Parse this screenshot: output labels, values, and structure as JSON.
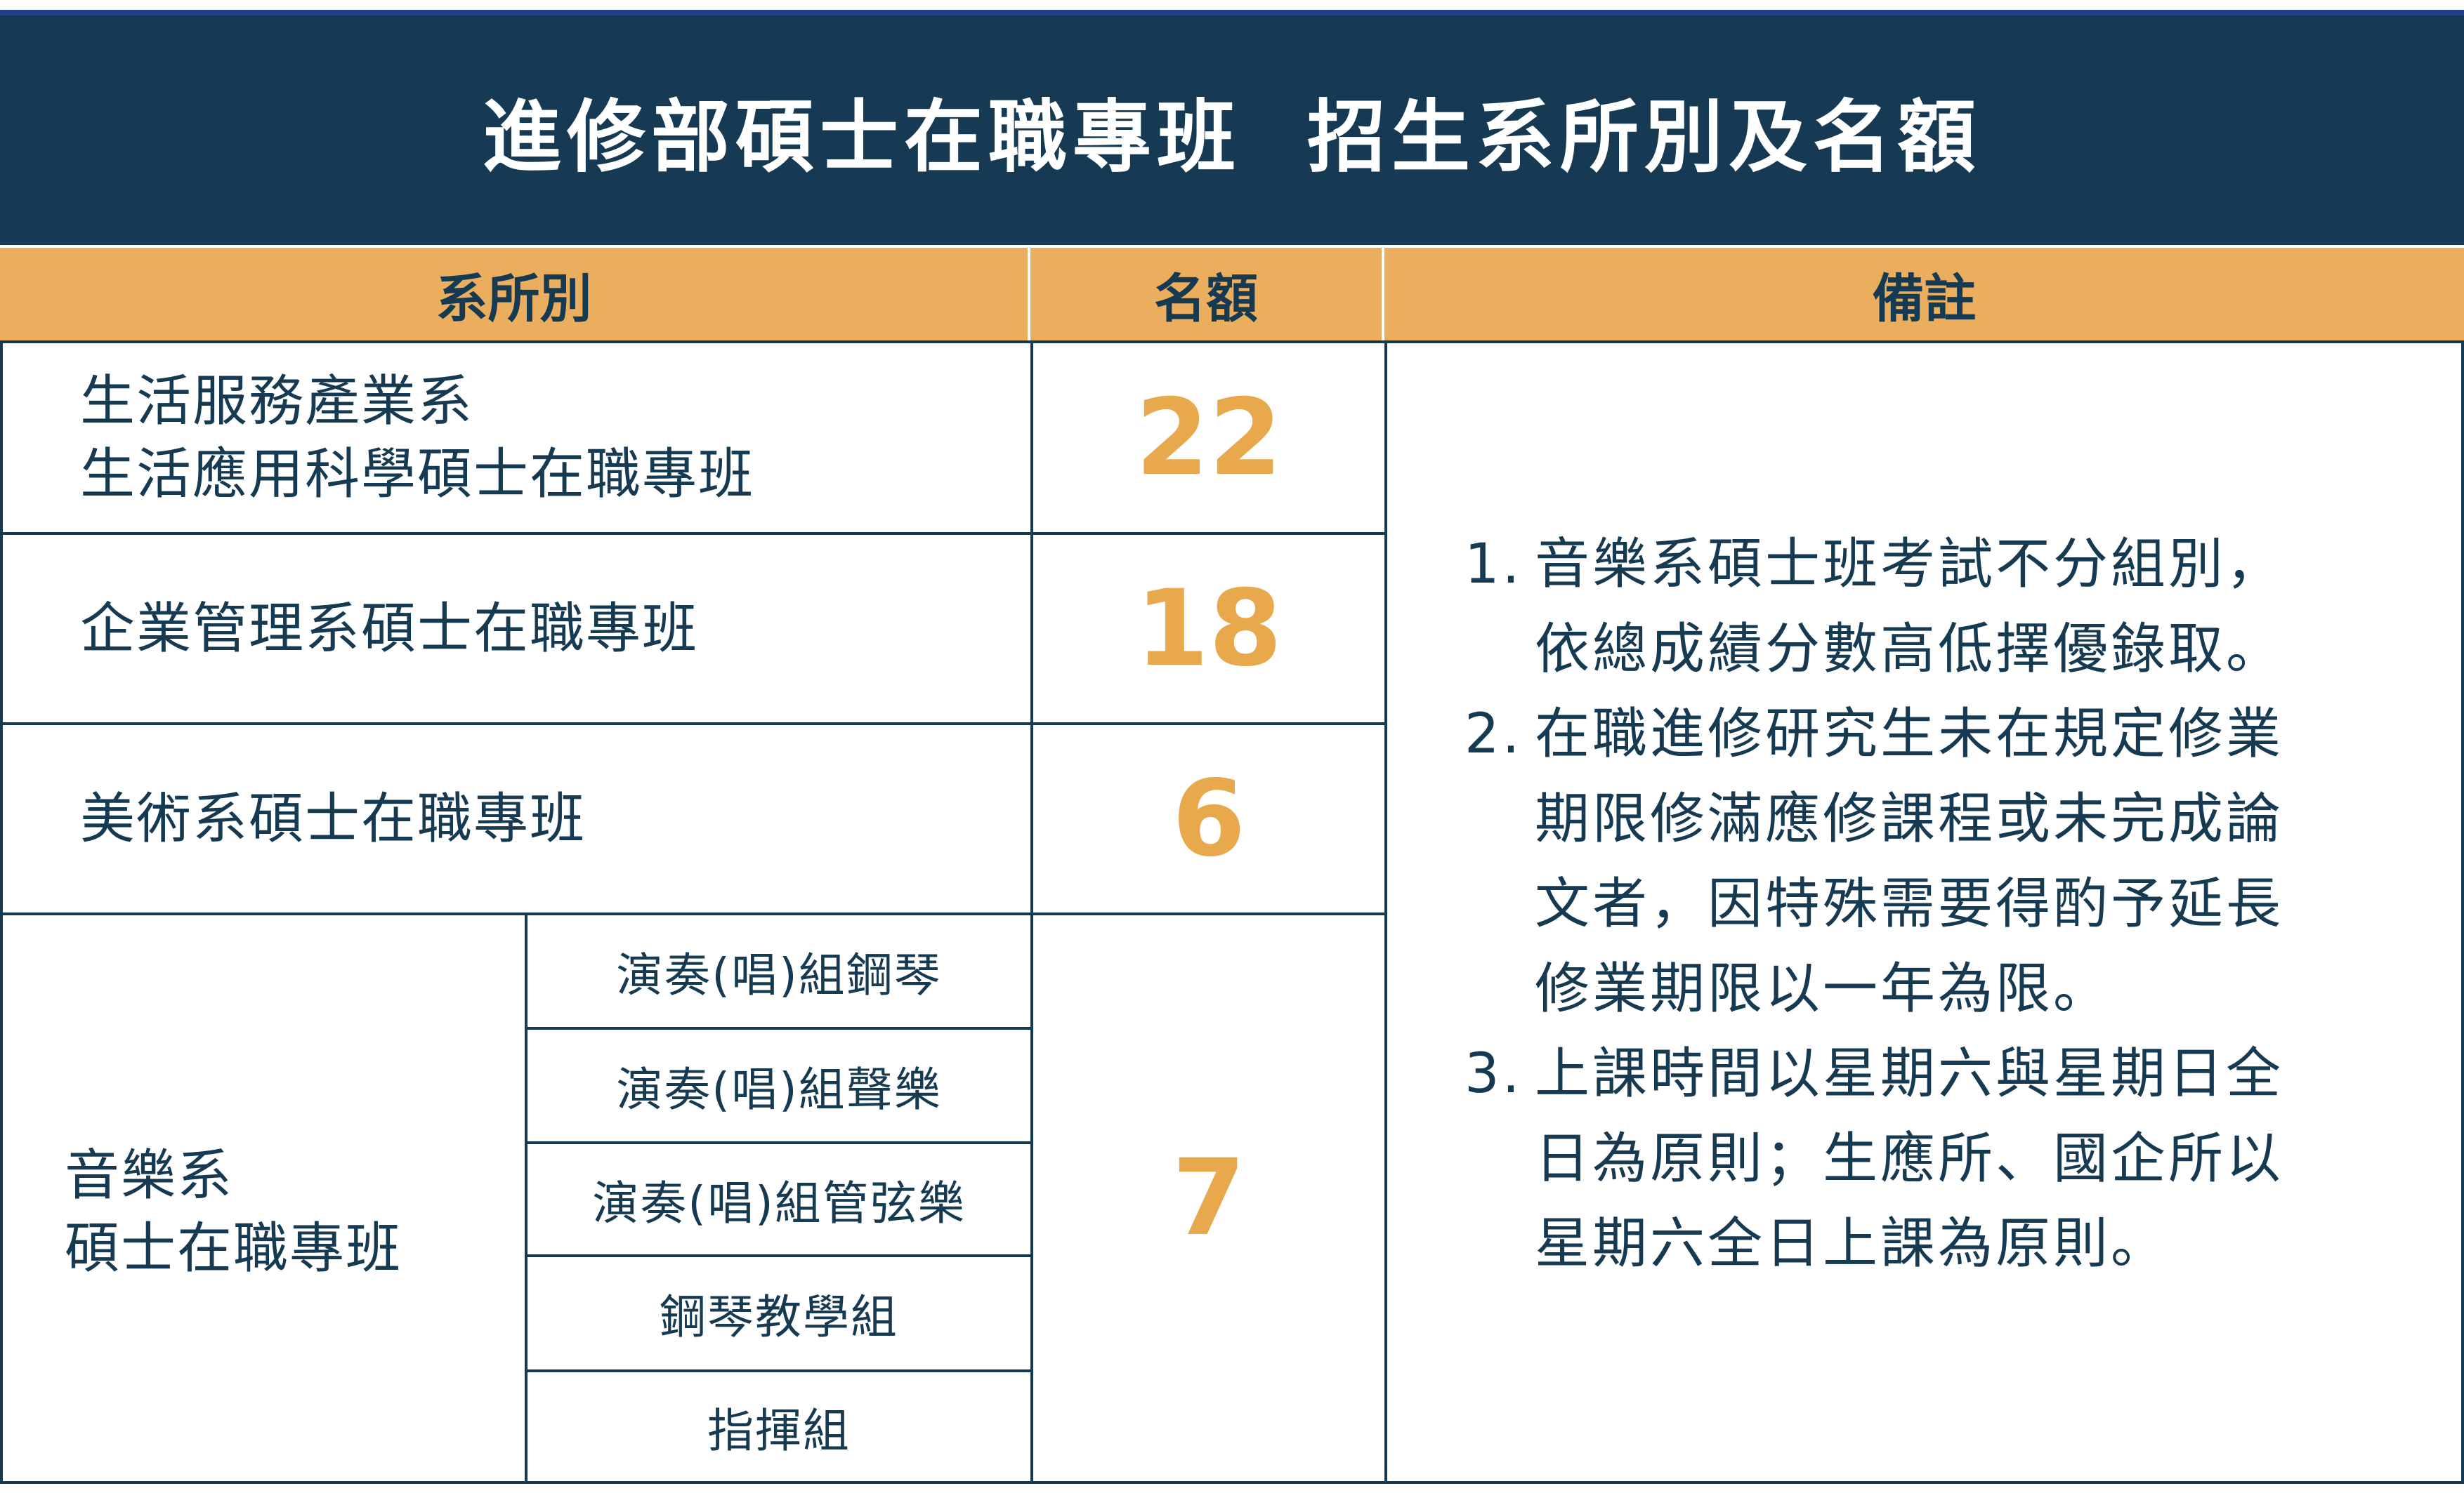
{
  "title": "進修部碩士在職專班  招生系所別及名額",
  "headers": {
    "department": "系所別",
    "quota": "名額",
    "remarks": "備註"
  },
  "rows": [
    {
      "department": [
        "生活服務產業系",
        "生活應用科學碩士在職專班"
      ],
      "quota": "22"
    },
    {
      "department": [
        "企業管理系碩士在職專班"
      ],
      "quota": "18"
    },
    {
      "department": [
        "美術系碩士在職專班"
      ],
      "quota": "6"
    },
    {
      "department": [
        "音樂系",
        "碩士在職專班"
      ],
      "quota": "7",
      "groups": [
        "演奏(唱)組鋼琴",
        "演奏(唱)組聲樂",
        "演奏(唱)組管弦樂",
        "鋼琴教學組",
        "指揮組"
      ]
    }
  ],
  "notes": [
    {
      "num": "1.",
      "text": "音樂系碩士班考試不分組別，\n依總成績分數高低擇優錄取。"
    },
    {
      "num": "2.",
      "text": "在職進修研究生未在規定修業\n期限修滿應修課程或未完成論\n文者，因特殊需要得酌予延長\n修業期限以一年為限。"
    },
    {
      "num": "3.",
      "text": "上課時間以星期六與星期日全\n日為原則；生應所、國企所以\n星期六全日上課為原則。"
    }
  ],
  "colors": {
    "navy": "#163a54",
    "orange_header": "#ebad5e",
    "quota_orange": "#e8a84c"
  }
}
